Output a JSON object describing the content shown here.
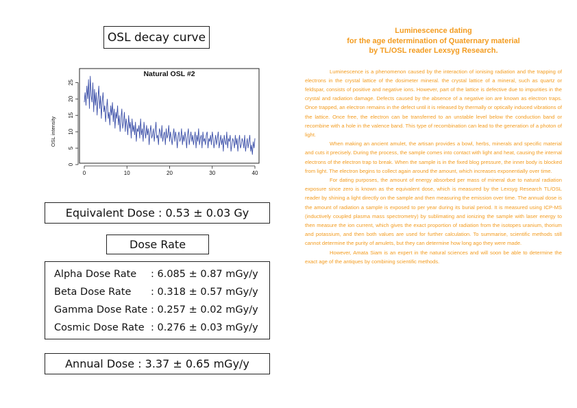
{
  "decay_title": "OSL decay curve",
  "chart_data": {
    "type": "line",
    "title": "Natural OSL #2",
    "xlabel": "",
    "ylabel": "OSL intensity",
    "xlim": [
      0,
      40
    ],
    "ylim": [
      0,
      28
    ],
    "x_ticks": [
      0,
      10,
      20,
      30,
      40
    ],
    "y_ticks": [
      0,
      5,
      10,
      15,
      20,
      25
    ],
    "grid": false,
    "line_color": "#3b4fa8",
    "series": [
      {
        "x": [
          0.0,
          0.2,
          0.4,
          0.6,
          0.8,
          1.0,
          1.2,
          1.4,
          1.6,
          1.8,
          2.0,
          2.2,
          2.4,
          2.6,
          2.8,
          3.0,
          3.2,
          3.4,
          3.6,
          3.8,
          4.0,
          4.2,
          4.4,
          4.6,
          4.8,
          5.0,
          5.2,
          5.4,
          5.6,
          5.8,
          6.0,
          6.2,
          6.4,
          6.6,
          6.8,
          7.0,
          7.2,
          7.4,
          7.6,
          7.8,
          8.0,
          8.2,
          8.4,
          8.6,
          8.8,
          9.0,
          9.2,
          9.4,
          9.6,
          9.8,
          10.0,
          10.2,
          10.4,
          10.6,
          10.8,
          11.0,
          11.2,
          11.4,
          11.6,
          11.8,
          12.0,
          12.2,
          12.4,
          12.6,
          12.8,
          13.0,
          13.2,
          13.4,
          13.6,
          13.8,
          14.0,
          14.2,
          14.4,
          14.6,
          14.8,
          15.0,
          15.2,
          15.4,
          15.6,
          15.8,
          16.0,
          16.2,
          16.4,
          16.6,
          16.8,
          17.0,
          17.2,
          17.4,
          17.6,
          17.8,
          18.0,
          18.2,
          18.4,
          18.6,
          18.8,
          19.0,
          19.2,
          19.4,
          19.6,
          19.8,
          20.0,
          20.2,
          20.4,
          20.6,
          20.8,
          21.0,
          21.2,
          21.4,
          21.6,
          21.8,
          22.0,
          22.2,
          22.4,
          22.6,
          22.8,
          23.0,
          23.2,
          23.4,
          23.6,
          23.8,
          24.0,
          24.2,
          24.4,
          24.6,
          24.8,
          25.0,
          25.2,
          25.4,
          25.6,
          25.8,
          26.0,
          26.2,
          26.4,
          26.6,
          26.8,
          27.0,
          27.2,
          27.4,
          27.6,
          27.8,
          28.0,
          28.2,
          28.4,
          28.6,
          28.8,
          29.0,
          29.2,
          29.4,
          29.6,
          29.8,
          30.0,
          30.2,
          30.4,
          30.6,
          30.8,
          31.0,
          31.2,
          31.4,
          31.6,
          31.8,
          32.0,
          32.2,
          32.4,
          32.6,
          32.8,
          33.0,
          33.2,
          33.4,
          33.6,
          33.8,
          34.0,
          34.2,
          34.4,
          34.6,
          34.8,
          35.0,
          35.2,
          35.4,
          35.6,
          35.8,
          36.0,
          36.2,
          36.4,
          36.6,
          36.8,
          37.0,
          37.2,
          37.4,
          37.6,
          37.8,
          38.0,
          38.2,
          38.4,
          38.6,
          38.8,
          39.0,
          39.2,
          39.4,
          39.6,
          39.8,
          40.0
        ],
        "values": [
          19,
          22,
          18,
          24,
          20,
          26,
          17,
          27,
          21,
          19,
          25,
          16,
          23,
          18,
          22,
          15,
          20,
          24,
          17,
          21,
          14,
          19,
          22,
          16,
          18,
          13,
          17,
          20,
          14,
          16,
          12,
          18,
          15,
          19,
          13,
          17,
          11,
          16,
          14,
          18,
          12,
          15,
          10,
          14,
          17,
          11,
          13,
          16,
          10,
          14,
          12,
          9,
          15,
          11,
          13,
          8,
          14,
          10,
          12,
          9,
          13,
          7,
          11,
          10,
          12,
          8,
          14,
          9,
          11,
          7,
          13,
          10,
          8,
          12,
          9,
          11,
          6,
          10,
          12,
          8,
          9,
          11,
          7,
          10,
          13,
          8,
          9,
          6,
          11,
          10,
          8,
          12,
          7,
          9,
          10,
          6,
          11,
          8,
          9,
          12,
          7,
          10,
          8,
          6,
          9,
          11,
          7,
          10,
          8,
          5,
          9,
          10,
          7,
          8,
          11,
          6,
          9,
          7,
          10,
          8,
          5,
          9,
          11,
          6,
          8,
          10,
          7,
          9,
          6,
          8,
          10,
          5,
          9,
          7,
          11,
          6,
          8,
          9,
          5,
          10,
          7,
          8,
          6,
          9,
          10,
          5,
          8,
          7,
          9,
          6,
          10,
          8,
          5,
          7,
          9,
          6,
          8,
          10,
          5,
          7,
          9,
          6,
          8,
          4,
          9,
          7,
          6,
          10,
          5,
          8,
          7,
          9,
          4,
          6,
          8,
          7,
          5,
          9,
          6,
          8,
          4,
          7,
          9,
          5,
          6,
          8,
          7,
          5,
          9,
          4,
          6,
          8,
          5,
          7,
          9,
          4,
          6,
          3,
          7,
          5,
          8
        ]
      }
    ]
  },
  "equivalent_dose": "Equivalent Dose : 0.53 ± 0.03 Gy",
  "dose_rate_title": "Dose Rate",
  "dose_rates": [
    {
      "name": "Alpha Dose Rate",
      "value": ": 6.085 ± 0.87 mGy/y"
    },
    {
      "name": "Beta Dose Rate",
      "value": ": 0.318 ± 0.57 mGy/y"
    },
    {
      "name": "Gamma Dose Rate",
      "value": ": 0.257 ± 0.02 mGy/y"
    },
    {
      "name": "Cosmic Dose Rate",
      "value": ": 0.276 ± 0.03 mGy/y"
    }
  ],
  "annual_dose": "Annual Dose : 3.37 ± 0.65 mGy/y",
  "article": {
    "title": "Luminescence dating\nfor the age determination of Quaternary material\nby TL/OSL reader Lexsyg Research.",
    "paragraphs": [
      "Luminescence is a phenomenon caused by the interaction of ionising radiation and the trapping of electrons in the crystal lattice of the dosimeter mineral. the crystal lattice of a mineral, such as quartz or feldspar, consists of positive and negative ions. However, part of the lattice is defective due to impurities in the crystal and radiation damage. Defects caused by the absence of a negative ion are known as electron traps. Once trapped, an electron remains in the defect until it is released by thermally or optically induced vibrations of the lattice. Once free, the electron can be transferred to an unstable level below the conduction band or recombine with a hole in the valence band. This type of recombination can lead to the generation of a photon of light.",
      "When making an ancient amulet, the artisan provides a bowl, herbs, minerals and specific material and cuts it precisely. During the process, the sample comes into contact with light and heat, causing the internal electrons of the electron trap to break. When the sample is in the fixed blog pressure, the inner body is blocked from light. The electron begins to collect again around the amount, which increases exponentially over time.",
      "For dating purposes, the amount of energy absorbed per mass of mineral due to natural radiation exposure since zero is known as the equivalent dose, which is measured by the Lexsyg Research TL/OSL reader by shining a light directly on the sample and then measuring the emission over time. The annual dose is the amount of radiation a sample is exposed to per year during its burial period. It is measured using ICP-MS (inductively coupled plasma mass spectrometry) by sublimating and ionizing the sample with laser energy to then measure the ion current, which gives the exact proportion of radiation from the isotopes uranium, thorium and potassium, and then both values are used for further calculation. To summarise, scientific methods still cannot determine the purity of amulets, but they can determine how long ago they were made.",
      "However, Amata Siam is an expert in the natural sciences and will soon be able to determine the exact age of the antiques by combining scientific methods."
    ]
  }
}
